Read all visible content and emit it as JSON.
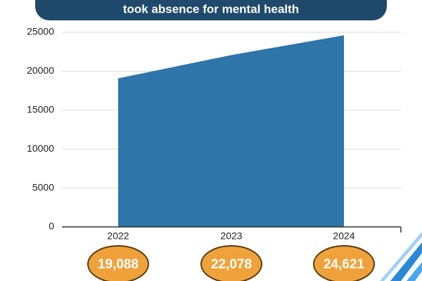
{
  "chart_data": {
    "type": "area",
    "title": "took absence for mental health",
    "categories": [
      "2022",
      "2023",
      "2024"
    ],
    "values": [
      19088,
      22078,
      24621
    ],
    "value_labels": [
      "19,088",
      "22,078",
      "24,621"
    ],
    "color": "#2e75aa",
    "ylim": [
      0,
      25000
    ],
    "yticks": [
      0,
      5000,
      10000,
      15000,
      20000,
      25000
    ],
    "grid": true
  }
}
